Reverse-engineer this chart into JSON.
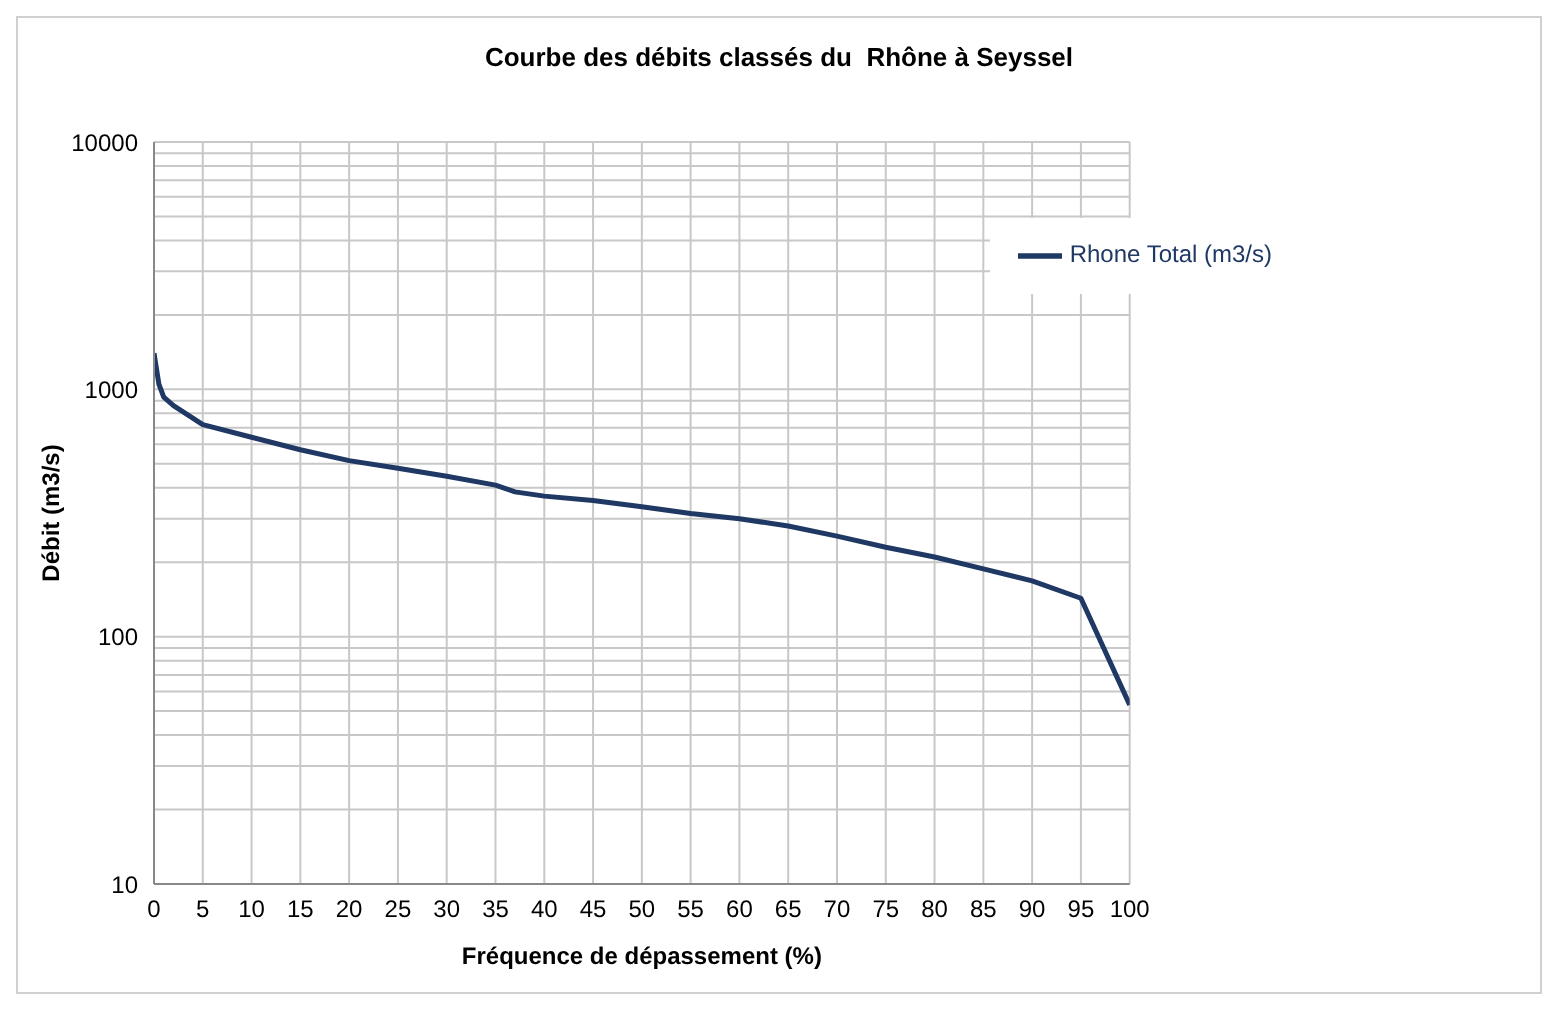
{
  "chart_data": {
    "type": "line",
    "title": "Courbe des débits classés du  Rhône à Seyssel",
    "xlabel": "Fréquence de dépassement (%)",
    "ylabel": "Débit (m3/s)",
    "x": [
      0,
      0.5,
      1,
      2,
      5,
      10,
      15,
      20,
      25,
      30,
      35,
      37,
      40,
      45,
      50,
      55,
      60,
      65,
      70,
      75,
      80,
      85,
      90,
      95,
      100
    ],
    "series": [
      {
        "name": "Rhone Total (m3/s)",
        "color": "#1f3864",
        "values": [
          1400,
          1050,
          930,
          860,
          720,
          640,
          570,
          515,
          480,
          445,
          410,
          385,
          370,
          355,
          335,
          315,
          300,
          280,
          255,
          230,
          210,
          188,
          168,
          143,
          53
        ]
      }
    ],
    "xlim": [
      0,
      100
    ],
    "xticks": [
      0,
      5,
      10,
      15,
      20,
      25,
      30,
      35,
      40,
      45,
      50,
      55,
      60,
      65,
      70,
      75,
      80,
      85,
      90,
      95,
      100
    ],
    "ylim": [
      10,
      10000
    ],
    "log": "y",
    "yticks": [
      10,
      {
        "value": 20,
        "label": null
      },
      {
        "value": 30,
        "label": null
      },
      {
        "value": 40,
        "label": null
      },
      {
        "value": 50,
        "label": null
      },
      {
        "value": 60,
        "label": null
      },
      {
        "value": 70,
        "label": null
      },
      {
        "value": 80,
        "label": null
      },
      {
        "value": 90,
        "label": null
      },
      100,
      {
        "value": 200,
        "label": null
      },
      {
        "value": 300,
        "label": null
      },
      {
        "value": 400,
        "label": null
      },
      {
        "value": 500,
        "label": null
      },
      {
        "value": 600,
        "label": null
      },
      {
        "value": 700,
        "label": null
      },
      {
        "value": 800,
        "label": null
      },
      {
        "value": 900,
        "label": null
      },
      1000,
      {
        "value": 2000,
        "label": null
      },
      {
        "value": 3000,
        "label": null
      },
      {
        "value": 4000,
        "label": null
      },
      {
        "value": 5000,
        "label": null
      },
      {
        "value": 6000,
        "label": null
      },
      {
        "value": 7000,
        "label": null
      },
      {
        "value": 8000,
        "label": null
      },
      {
        "value": 9000,
        "label": null
      },
      10000
    ],
    "grid": true,
    "legend": "top right",
    "marker": "none",
    "line_style": "solid"
  }
}
